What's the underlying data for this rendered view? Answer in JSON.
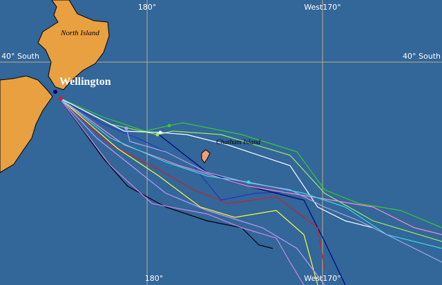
{
  "grid_labels": {
    "top": [
      "180°",
      "West170°"
    ],
    "bottom": [
      "180°",
      "West170°"
    ],
    "left": "40° South",
    "right": "40° South"
  },
  "places": {
    "north_island": "North Island",
    "wellington": "Wellington",
    "chatham_island": "Chatham Island"
  }
}
